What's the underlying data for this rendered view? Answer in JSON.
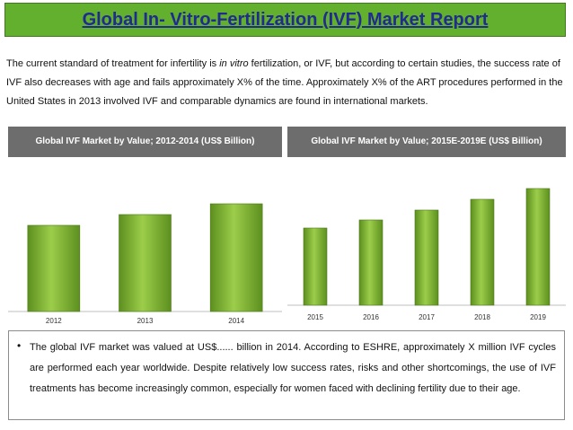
{
  "header": {
    "title": "Global In- Vitro-Fertilization (IVF) Market Report"
  },
  "intro": {
    "before": "The current standard of treatment for infertility is ",
    "italic": "in vitro",
    "after": " fertilization, or IVF, but according to certain studies, the success rate of IVF also decreases with age and fails approximately  X% of the time. Approximately X% of the ART procedures performed in the United States in 2013 involved IVF and comparable dynamics are found in international markets."
  },
  "panels": {
    "left_title": "Global IVF Market by Value; 2012-2014 (US$ Billion)",
    "right_title": "Global IVF Market by Value; 2015E-2019E (US$ Billion)"
  },
  "bullet": {
    "text": "The global IVF market was valued at US$...... billion in 2014. According to ESHRE, approximately X million IVF cycles are performed each year worldwide. Despite relatively low success rates, risks and other shortcomings, the use of IVF treatments has become increasingly common, especially for women faced with declining fertility due to their age."
  },
  "colors": {
    "bar_light": "#9ccd4a",
    "bar_dark": "#5c8f1f",
    "title_bg": "#63b02e",
    "title_text": "#1f2b8f",
    "panel_header_bg": "#6d6d6d"
  },
  "chart_data": [
    {
      "type": "bar",
      "title": "Global IVF Market by Value; 2012-2014 (US$ Billion)",
      "categories": [
        "2012",
        "2013",
        "2014"
      ],
      "values": [
        96,
        108,
        120
      ],
      "ylim": [
        0,
        155
      ],
      "y_axis_shown": false,
      "grid": false,
      "legend": "none"
    },
    {
      "type": "bar",
      "title": "Global IVF Market by Value; 2015E-2019E (US$ Billion)",
      "categories": [
        "2015",
        "2016",
        "2017",
        "2018",
        "2019"
      ],
      "values": [
        86,
        95,
        106,
        118,
        130
      ],
      "ylim": [
        0,
        158
      ],
      "y_axis_shown": false,
      "grid": false,
      "legend": "none"
    }
  ]
}
